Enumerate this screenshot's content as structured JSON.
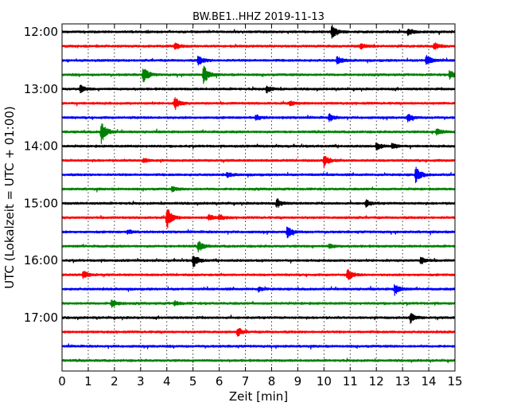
{
  "chart_data": {
    "type": "line",
    "title": "BW.BE1..HHZ 2019-11-13",
    "xlabel": "Zeit  [min]",
    "ylabel": "UTC (Lokalzeit = UTC + 01:00)",
    "xlim": [
      0,
      15
    ],
    "x_ticks": [
      "0",
      "1",
      "2",
      "3",
      "4",
      "5",
      "6",
      "7",
      "8",
      "9",
      "10",
      "11",
      "12",
      "13",
      "14",
      "15"
    ],
    "y_ticks": [
      "12:00",
      "13:00",
      "14:00",
      "15:00",
      "16:00",
      "17:00"
    ],
    "grid": true,
    "grid_style": "dotted vertical",
    "track_interval_min": 15,
    "track_colors": [
      "#000000",
      "#ff0000",
      "#0000ff",
      "#008000"
    ],
    "traces": [
      {
        "start": "12:00",
        "color": "#000000",
        "events": [
          {
            "t": 10.3,
            "amp": 1.0
          },
          {
            "t": 13.2,
            "amp": 0.4
          }
        ]
      },
      {
        "start": "12:15",
        "color": "#ff0000",
        "events": [
          {
            "t": 4.3,
            "amp": 0.5
          },
          {
            "t": 11.4,
            "amp": 0.4
          },
          {
            "t": 14.2,
            "amp": 0.5
          }
        ]
      },
      {
        "start": "12:30",
        "color": "#0000ff",
        "events": [
          {
            "t": 5.2,
            "amp": 0.7
          },
          {
            "t": 10.5,
            "amp": 0.6
          },
          {
            "t": 13.9,
            "amp": 0.8
          }
        ]
      },
      {
        "start": "12:45",
        "color": "#008000",
        "events": [
          {
            "t": 3.1,
            "amp": 1.2
          },
          {
            "t": 5.4,
            "amp": 1.4
          },
          {
            "t": 14.8,
            "amp": 0.7
          }
        ]
      },
      {
        "start": "13:00",
        "color": "#000000",
        "events": [
          {
            "t": 0.7,
            "amp": 0.5
          },
          {
            "t": 7.8,
            "amp": 0.5
          }
        ]
      },
      {
        "start": "13:15",
        "color": "#ff0000",
        "events": [
          {
            "t": 4.3,
            "amp": 0.9
          },
          {
            "t": 8.7,
            "amp": 0.3
          }
        ]
      },
      {
        "start": "13:30",
        "color": "#0000ff",
        "events": [
          {
            "t": 7.4,
            "amp": 0.4
          },
          {
            "t": 10.2,
            "amp": 0.5
          },
          {
            "t": 13.2,
            "amp": 0.5
          }
        ]
      },
      {
        "start": "13:45",
        "color": "#008000",
        "events": [
          {
            "t": 1.5,
            "amp": 1.6
          },
          {
            "t": 14.3,
            "amp": 0.5
          }
        ]
      },
      {
        "start": "14:00",
        "color": "#000000",
        "events": [
          {
            "t": 12.0,
            "amp": 0.5
          },
          {
            "t": 12.6,
            "amp": 0.4
          }
        ]
      },
      {
        "start": "14:15",
        "color": "#ff0000",
        "events": [
          {
            "t": 10.0,
            "amp": 0.9
          },
          {
            "t": 3.1,
            "amp": 0.3
          }
        ]
      },
      {
        "start": "14:30",
        "color": "#0000ff",
        "events": [
          {
            "t": 13.5,
            "amp": 1.2
          },
          {
            "t": 6.3,
            "amp": 0.3
          }
        ]
      },
      {
        "start": "14:45",
        "color": "#008000",
        "events": [
          {
            "t": 4.2,
            "amp": 0.3
          }
        ]
      },
      {
        "start": "15:00",
        "color": "#000000",
        "events": [
          {
            "t": 8.2,
            "amp": 0.6
          },
          {
            "t": 11.6,
            "amp": 0.5
          }
        ]
      },
      {
        "start": "15:15",
        "color": "#ff0000",
        "events": [
          {
            "t": 4.0,
            "amp": 1.6
          },
          {
            "t": 5.6,
            "amp": 0.4
          },
          {
            "t": 6.0,
            "amp": 0.4
          }
        ]
      },
      {
        "start": "15:30",
        "color": "#0000ff",
        "events": [
          {
            "t": 8.6,
            "amp": 0.8
          },
          {
            "t": 2.5,
            "amp": 0.3
          }
        ]
      },
      {
        "start": "15:45",
        "color": "#008000",
        "events": [
          {
            "t": 5.2,
            "amp": 0.8
          },
          {
            "t": 10.2,
            "amp": 0.3
          }
        ]
      },
      {
        "start": "16:00",
        "color": "#000000",
        "events": [
          {
            "t": 5.0,
            "amp": 1.0
          },
          {
            "t": 13.7,
            "amp": 0.5
          }
        ]
      },
      {
        "start": "16:15",
        "color": "#ff0000",
        "events": [
          {
            "t": 0.8,
            "amp": 0.6
          },
          {
            "t": 10.9,
            "amp": 0.8
          }
        ]
      },
      {
        "start": "16:30",
        "color": "#0000ff",
        "events": [
          {
            "t": 12.7,
            "amp": 0.8
          },
          {
            "t": 7.5,
            "amp": 0.3
          }
        ]
      },
      {
        "start": "16:45",
        "color": "#008000",
        "events": [
          {
            "t": 1.9,
            "amp": 0.6
          },
          {
            "t": 4.3,
            "amp": 0.3
          }
        ]
      },
      {
        "start": "17:00",
        "color": "#000000",
        "events": [
          {
            "t": 13.3,
            "amp": 0.7
          }
        ]
      },
      {
        "start": "17:15",
        "color": "#ff0000",
        "events": [
          {
            "t": 6.7,
            "amp": 0.6
          }
        ]
      },
      {
        "start": "17:30",
        "color": "#0000ff",
        "events": []
      },
      {
        "start": "17:45",
        "color": "#008000",
        "events": []
      }
    ]
  }
}
